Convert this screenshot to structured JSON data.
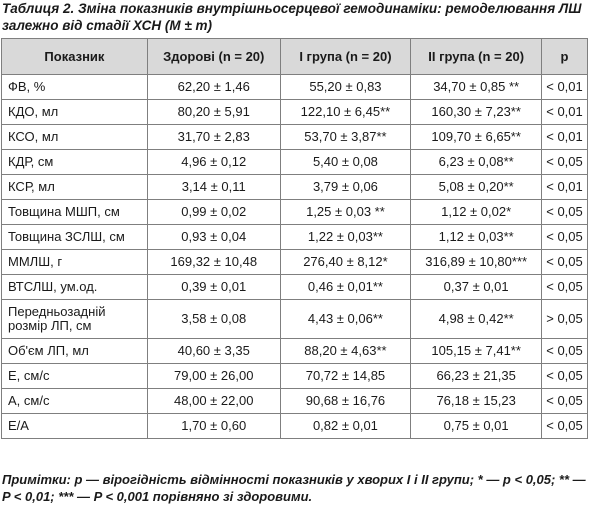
{
  "caption": "Таблиця 2. Зміна показників внутрішньосерцевої гемодинаміки: ремоделювання ЛШ залежно від стадії ХСН (M ± m)",
  "headers": [
    "Показник",
    "Здорові (n = 20)",
    "I група (n = 20)",
    "II група (n = 20)",
    "p"
  ],
  "rows": [
    [
      "ФВ, %",
      "62,20 ± 1,46",
      "55,20 ± 0,83",
      "34,70 ± 0,85 **",
      "< 0,01"
    ],
    [
      "КДО, мл",
      "80,20 ± 5,91",
      "122,10 ± 6,45**",
      "160,30 ± 7,23**",
      "< 0,01"
    ],
    [
      "КСО, мл",
      "31,70 ± 2,83",
      "53,70 ± 3,87**",
      "109,70 ± 6,65**",
      "< 0,01"
    ],
    [
      "КДР, см",
      "4,96 ± 0,12",
      "5,40 ± 0,08",
      "6,23 ± 0,08**",
      "< 0,05"
    ],
    [
      "КСР, мл",
      "3,14 ± 0,11",
      "3,79 ± 0,06",
      "5,08 ± 0,20**",
      "< 0,01"
    ],
    [
      "Товщина МШП, см",
      "0,99 ± 0,02",
      "1,25 ± 0,03 **",
      "1,12 ± 0,02*",
      "< 0,05"
    ],
    [
      "Товщина ЗСЛШ, см",
      "0,93 ± 0,04",
      "1,22 ± 0,03**",
      "1,12 ± 0,03**",
      "< 0,05"
    ],
    [
      "ММЛШ, г",
      "169,32 ± 10,48",
      "276,40 ± 8,12*",
      "316,89 ± 10,80***",
      "< 0,05"
    ],
    [
      "ВТСЛШ, ум.од.",
      "0,39 ± 0,01",
      "0,46 ± 0,01**",
      "0,37 ± 0,01",
      "< 0,05"
    ],
    [
      "Передньозадній розмір ЛП, см",
      "3,58 ± 0,08",
      "4,43 ± 0,06**",
      "4,98 ± 0,42**",
      "> 0,05"
    ],
    [
      "Об'єм ЛП, мл",
      "40,60 ± 3,35",
      "88,20 ± 4,63**",
      "105,15 ± 7,41**",
      "< 0,05"
    ],
    [
      "E, см/с",
      "79,00 ± 26,00",
      "70,72 ± 14,85",
      "66,23 ± 21,35",
      "< 0,05"
    ],
    [
      "A, см/с",
      "48,00 ± 22,00",
      "90,68 ± 16,76",
      "76,18 ± 15,23",
      "< 0,05"
    ],
    [
      "E/A",
      "1,70 ± 0,60",
      "0,82 ± 0,01",
      "0,75 ± 0,01",
      "< 0,05"
    ]
  ],
  "note": "Примітки: р — вірогідність відмінності показників у хворих I і II групи; * — р < 0,05; ** — P < 0,01; *** — P < 0,001 порівняно зі здоровими."
}
